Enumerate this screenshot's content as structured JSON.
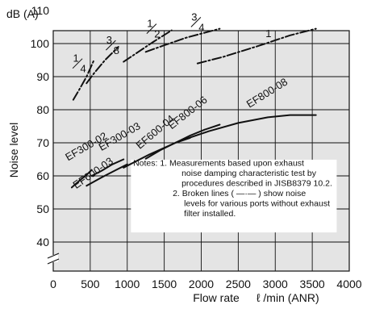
{
  "chart_data": {
    "type": "line",
    "title": "",
    "ylabel": "Noise level",
    "yunit": "dB (A)",
    "xlabel": "Flow rate",
    "xunit": "ℓ /min (ANR)",
    "xlim": [
      0,
      4000
    ],
    "ylim": [
      40,
      110
    ],
    "xticks": [
      "0",
      "500",
      "1000",
      "1500",
      "2000",
      "2500",
      "3000",
      "3500",
      "4000"
    ],
    "yticks": [
      "40",
      "50",
      "60",
      "70",
      "80",
      "90",
      "100",
      "110"
    ],
    "grid": true,
    "y_axis_break": true,
    "solid_series_style": "solid",
    "port_series_style": "dash-dot",
    "series": [
      {
        "name": "EF300-02",
        "style": "solid",
        "x": [
          250,
          350,
          450,
          520
        ],
        "y": [
          56.5,
          58.5,
          60.3,
          61.8
        ]
      },
      {
        "name": "EF300-03",
        "style": "solid",
        "x": [
          520,
          650,
          800,
          950
        ],
        "y": [
          60,
          61.5,
          63.5,
          65
        ]
      },
      {
        "name": "EF600-03",
        "style": "solid",
        "x": [
          450,
          650,
          850,
          1000
        ],
        "y": [
          57,
          59.5,
          61.8,
          63.5
        ]
      },
      {
        "name": "EF600-04",
        "style": "solid",
        "x": [
          1250,
          1450,
          1650,
          1850
        ],
        "y": [
          65.2,
          67.8,
          70,
          71.5
        ]
      },
      {
        "name": "EF800-06",
        "style": "solid",
        "x": [
          1650,
          1850,
          2050,
          2250
        ],
        "y": [
          70,
          72.2,
          74,
          75.5
        ]
      },
      {
        "name": "EF800-08",
        "style": "solid",
        "x": [
          950,
          1300,
          1700,
          2100,
          2500,
          2900,
          3200,
          3550
        ],
        "y": [
          62.5,
          66.5,
          70.5,
          73.5,
          76,
          77.7,
          78.4,
          78.4
        ]
      },
      {
        "name": "1/4",
        "style": "dash-dot",
        "x": [
          270,
          350,
          450,
          550
        ],
        "y": [
          83,
          86,
          90,
          95
        ]
      },
      {
        "name": "3/8",
        "style": "dash-dot",
        "x": [
          450,
          550,
          700,
          880
        ],
        "y": [
          88,
          91,
          95,
          99
        ]
      },
      {
        "name": "1/2",
        "style": "dash-dot",
        "x": [
          950,
          1150,
          1350,
          1600
        ],
        "y": [
          94.5,
          97.5,
          100.5,
          104
        ]
      },
      {
        "name": "3/4",
        "style": "dash-dot",
        "x": [
          1250,
          1500,
          1800,
          2250
        ],
        "y": [
          97.5,
          99.5,
          101.8,
          104.5
        ]
      },
      {
        "name": "1",
        "style": "dash-dot",
        "x": [
          1950,
          2300,
          2800,
          3200,
          3550
        ],
        "y": [
          94,
          96,
          99.5,
          102.5,
          104.5
        ]
      }
    ],
    "labels": [
      {
        "text": "EF300-02",
        "x": 200,
        "y": 64.5,
        "angle": -30
      },
      {
        "text": "EF300-03",
        "x": 650,
        "y": 67.5,
        "angle": -30
      },
      {
        "text": "EF600-03",
        "x": 310,
        "y": 56,
        "angle": -35
      },
      {
        "text": "EF600-04",
        "x": 1170,
        "y": 68,
        "angle": -40
      },
      {
        "text": "EF800-06",
        "x": 1600,
        "y": 74,
        "angle": -38
      },
      {
        "text": "EF800-08",
        "x": 2650,
        "y": 80.5,
        "angle": -32
      },
      {
        "text": "1",
        "x": 2870,
        "y": 102,
        "angle": 0
      },
      {
        "text": "1/4",
        "x": 350,
        "y": 93.5,
        "angle": 0,
        "fraction": true
      },
      {
        "text": "3/8",
        "x": 800,
        "y": 99,
        "angle": 0,
        "fraction": true
      },
      {
        "text": "1/2",
        "x": 1350,
        "y": 104,
        "angle": 0,
        "fraction": true
      },
      {
        "text": "3/4",
        "x": 1950,
        "y": 106,
        "angle": 0,
        "fraction": true
      }
    ],
    "notes": [
      "Notes: 1. Measurements based upon exhaust",
      "noise damping characteristic test by",
      "procedures described in JISB8379 10.2.",
      "2. Broken lines ( —·— ) show noise",
      "levels for various ports without exhaust",
      "filter installed."
    ]
  }
}
